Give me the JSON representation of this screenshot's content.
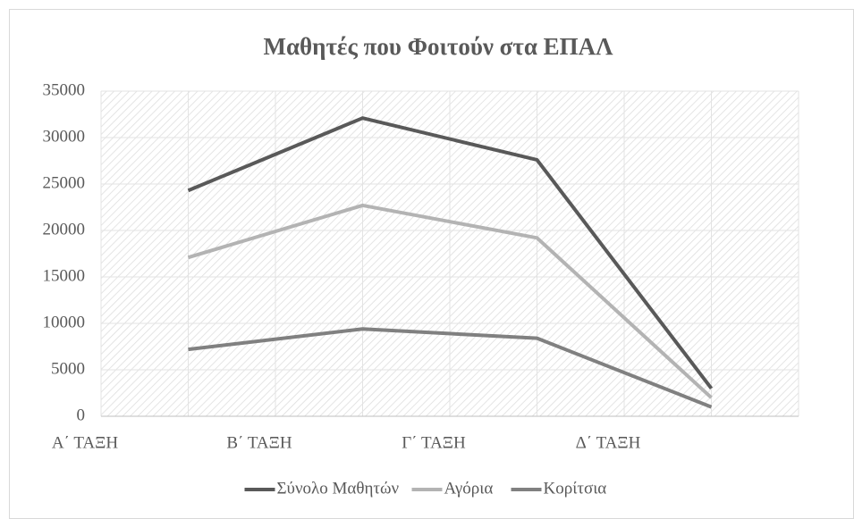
{
  "chart_data": {
    "type": "line",
    "title": "Μαθητές που Φοιτούν στα ΕΠΑΛ",
    "categories": [
      "Α΄ ΤΑΞΗ",
      "Β΄ ΤΑΞΗ",
      "Γ΄ ΤΑΞΗ",
      "Δ΄ ΤΑΞΗ"
    ],
    "series": [
      {
        "name": "Σύνολο Μαθητών",
        "color": "#595959",
        "values": [
          24300,
          32100,
          27600,
          3000
        ]
      },
      {
        "name": "Αγόρια",
        "color": "#b3b3b3",
        "values": [
          17100,
          22700,
          19200,
          2000
        ]
      },
      {
        "name": "Κορίτσια",
        "color": "#808080",
        "values": [
          7200,
          9400,
          8400,
          1000
        ]
      }
    ],
    "ylim": [
      0,
      35000
    ],
    "yticks": [
      0,
      5000,
      10000,
      15000,
      20000,
      25000,
      30000,
      35000
    ],
    "grid": true,
    "legend": "bottom"
  }
}
